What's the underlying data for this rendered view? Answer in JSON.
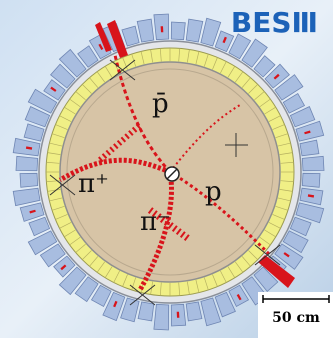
{
  "logo": "BESⅢ",
  "particles": [
    "p̄",
    "π⁺",
    "π⁻",
    "p"
  ],
  "scale_label": "50 cm"
}
